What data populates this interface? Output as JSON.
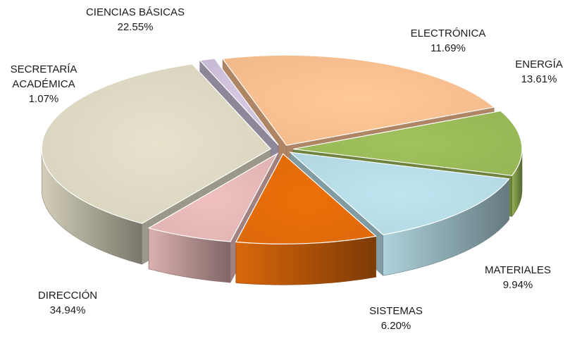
{
  "chart_data": {
    "type": "pie",
    "title": "",
    "start_label": "ELECTRÓNICA",
    "slices": [
      {
        "name": "ELECTRÓNICA",
        "name_lines": [
          "ELECTRÓNICA"
        ],
        "value": 11.69,
        "value_label": "11.69%",
        "color": "#9bbb59"
      },
      {
        "name": "ENERGÍA",
        "name_lines": [
          "ENERGÍA"
        ],
        "value": 13.61,
        "value_label": "13.61%",
        "color": "#b7dde8"
      },
      {
        "name": "MATERIALES",
        "name_lines": [
          "MATERIALES"
        ],
        "value": 9.94,
        "value_label": "9.94%",
        "color": "#e46c0a"
      },
      {
        "name": "SISTEMAS",
        "name_lines": [
          "SISTEMAS"
        ],
        "value": 6.2,
        "value_label": "6.20%",
        "color": "#e6b9b8"
      },
      {
        "name": "DIRECCIÓN",
        "name_lines": [
          "DIRECCIÓN"
        ],
        "value": 34.94,
        "value_label": "34.94%",
        "color": "#ddd9c3"
      },
      {
        "name": "SECRETARÍA ACADÉMICA",
        "name_lines": [
          "SECRETARÍA",
          "ACADÉMICA"
        ],
        "value": 1.07,
        "value_label": "1.07%",
        "color": "#ccc0da"
      },
      {
        "name": "CIENCIAS BÁSICAS",
        "name_lines": [
          "CIENCIAS BÁSICAS"
        ],
        "value": 22.55,
        "value_label": "22.55%",
        "color": "#fac090"
      }
    ]
  }
}
